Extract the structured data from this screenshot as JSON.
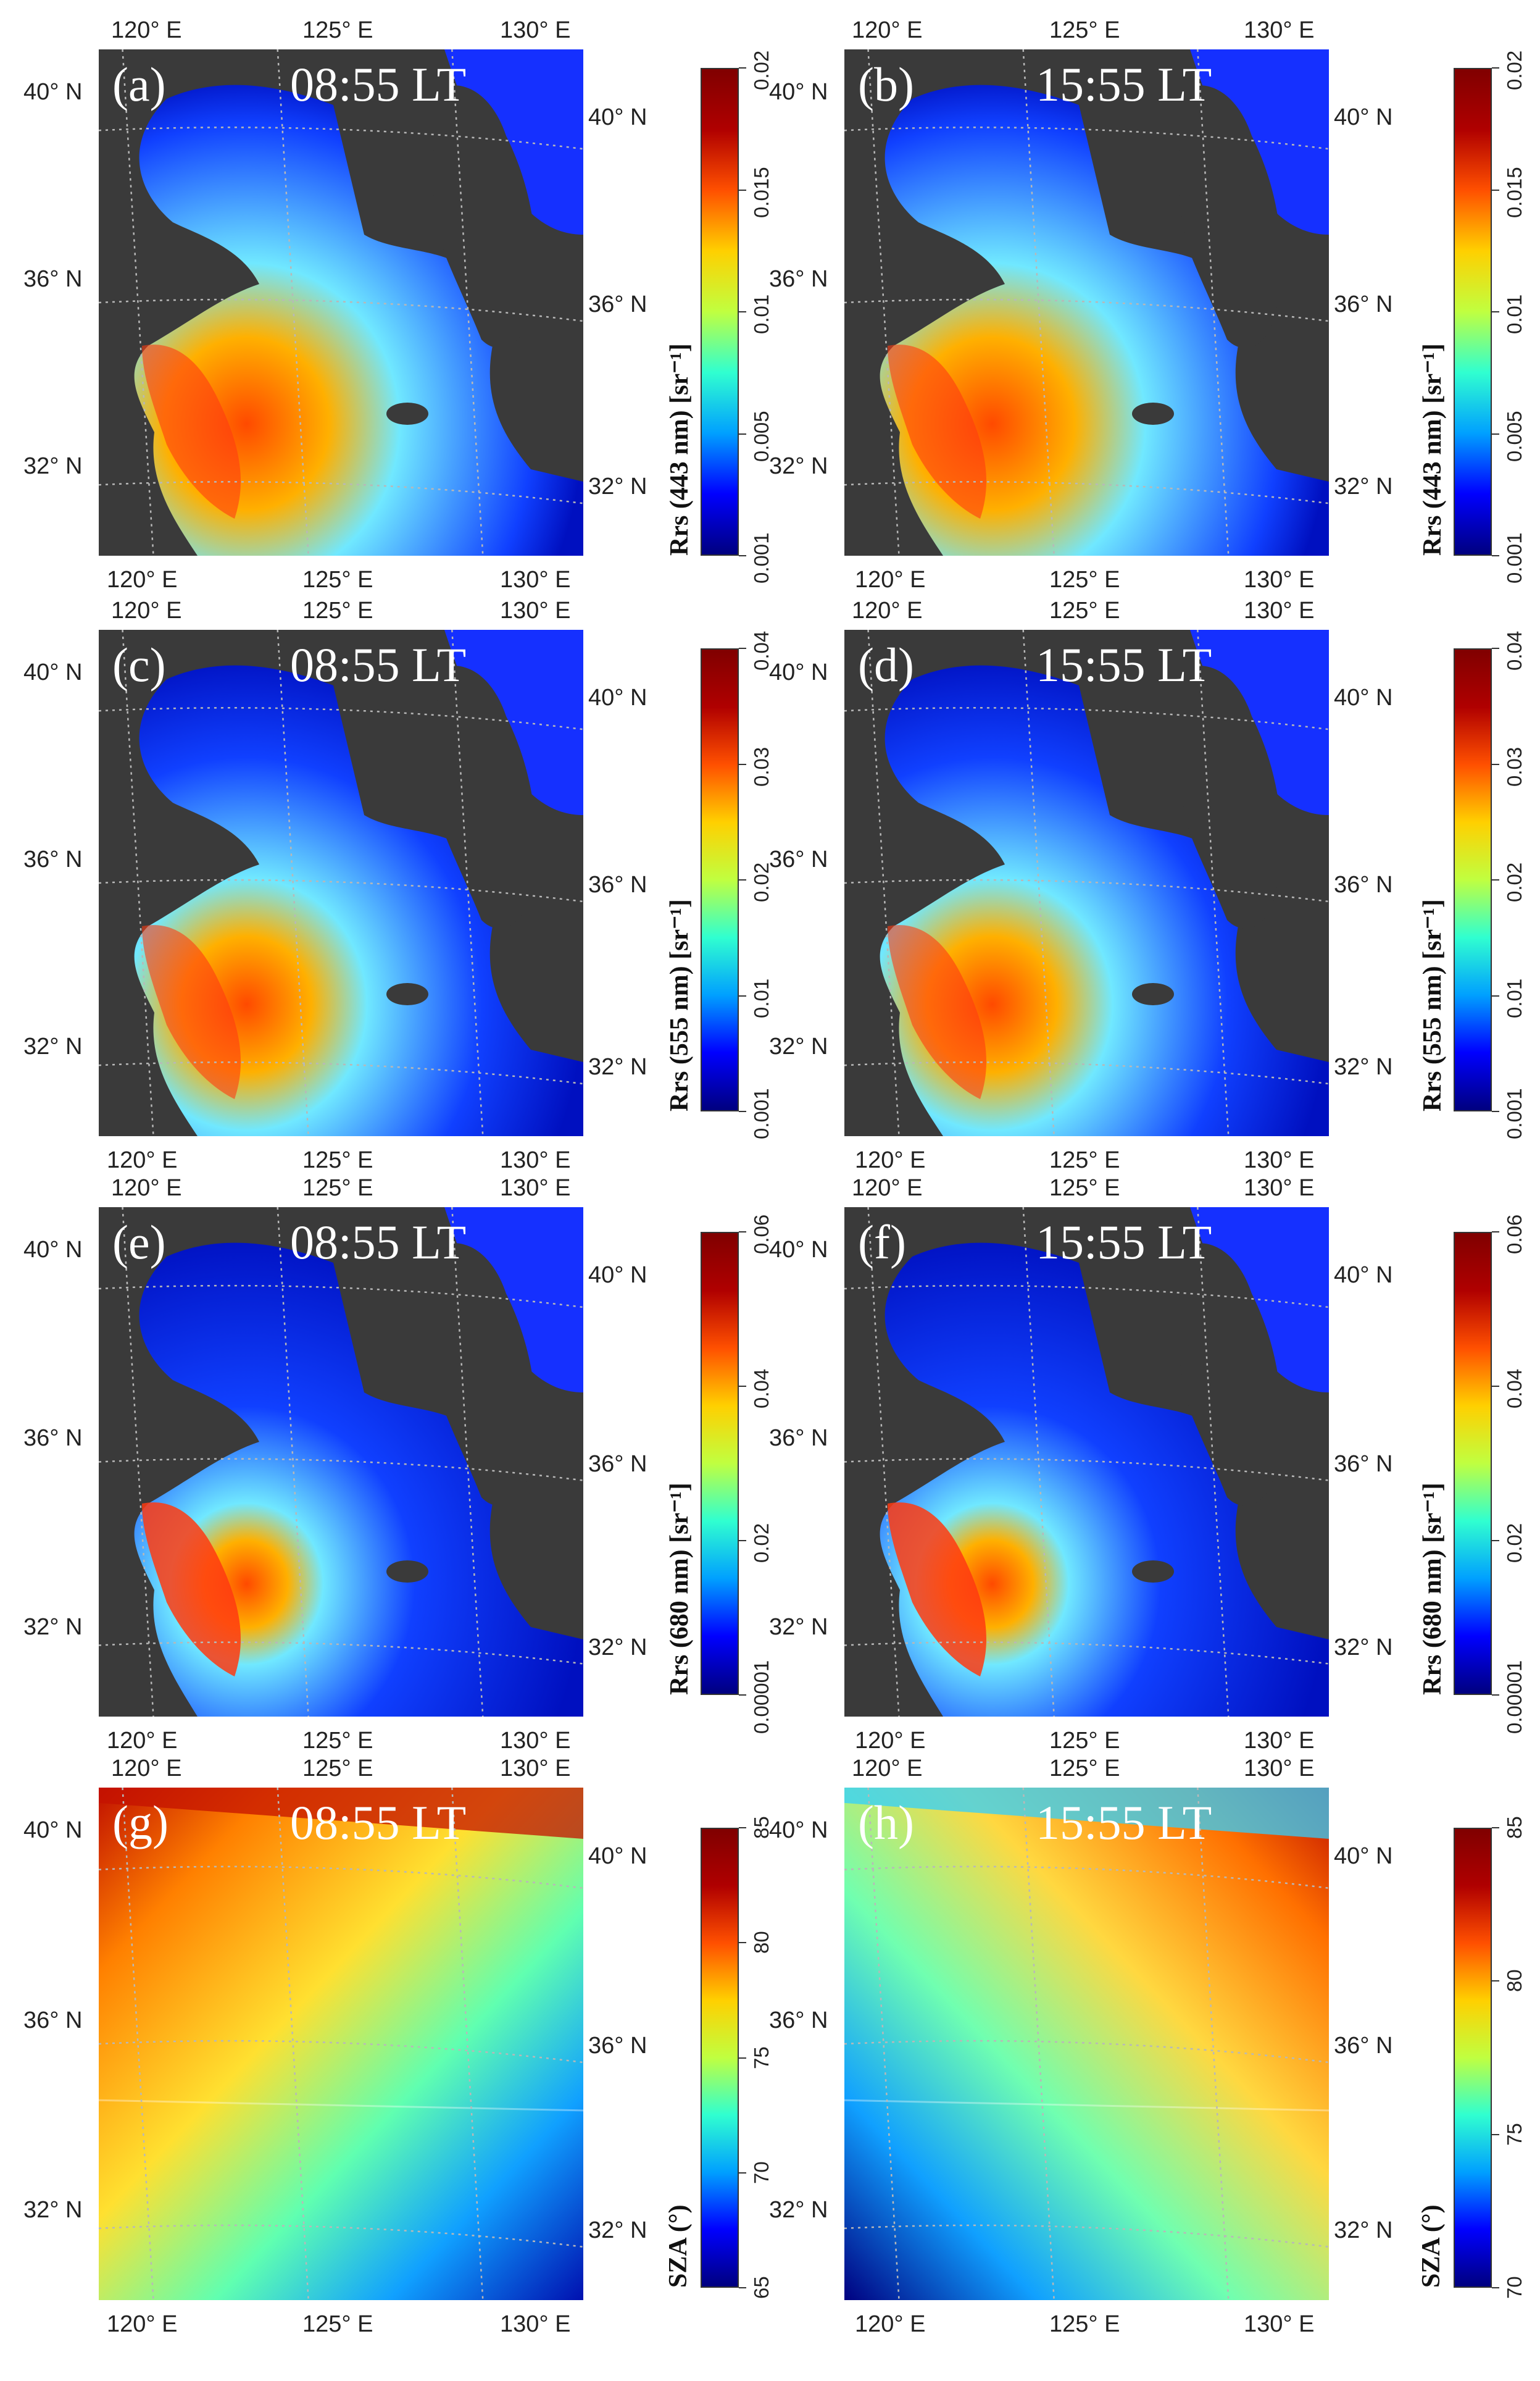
{
  "figure": {
    "panels": [
      {
        "id": "a",
        "label": "(a)",
        "time": "08:55 LT",
        "variable": "rrs443",
        "cbar_title": "Rrs (443 nm) [sr⁻¹]",
        "cbar_ticks": [
          "0.001",
          "0.005",
          "0.01",
          "0.015",
          "0.02"
        ],
        "scale": "jet"
      },
      {
        "id": "b",
        "label": "(b)",
        "time": "15:55 LT",
        "variable": "rrs443",
        "cbar_title": "Rrs (443 nm) [sr⁻¹]",
        "cbar_ticks": [
          "0.001",
          "0.005",
          "0.01",
          "0.015",
          "0.02"
        ],
        "scale": "jet"
      },
      {
        "id": "c",
        "label": "(c)",
        "time": "08:55 LT",
        "variable": "rrs555",
        "cbar_title": "Rrs (555 nm) [sr⁻¹]",
        "cbar_ticks": [
          "0.001",
          "0.01",
          "0.02",
          "0.03",
          "0.04"
        ],
        "scale": "jet"
      },
      {
        "id": "d",
        "label": "(d)",
        "time": "15:55 LT",
        "variable": "rrs555",
        "cbar_title": "Rrs (555 nm) [sr⁻¹]",
        "cbar_ticks": [
          "0.001",
          "0.01",
          "0.02",
          "0.03",
          "0.04"
        ],
        "scale": "jet"
      },
      {
        "id": "e",
        "label": "(e)",
        "time": "08:55 LT",
        "variable": "rrs680",
        "cbar_title": "Rrs (680 nm) [sr⁻¹]",
        "cbar_ticks": [
          "0.00001",
          "0.02",
          "0.04",
          "0.06"
        ],
        "scale": "jet"
      },
      {
        "id": "f",
        "label": "(f)",
        "time": "15:55 LT",
        "variable": "rrs680",
        "cbar_title": "Rrs (680 nm) [sr⁻¹]",
        "cbar_ticks": [
          "0.00001",
          "0.02",
          "0.04",
          "0.06"
        ],
        "scale": "jet"
      },
      {
        "id": "g",
        "label": "(g)",
        "time": "08:55 LT",
        "variable": "sza",
        "cbar_title": "SZA (°)",
        "cbar_ticks": [
          "65",
          "70",
          "75",
          "80",
          "85"
        ],
        "scale": "jet"
      },
      {
        "id": "h",
        "label": "(h)",
        "time": "15:55 LT",
        "variable": "sza",
        "cbar_title": "SZA (°)",
        "cbar_ticks": [
          "70",
          "75",
          "80",
          "85"
        ],
        "scale": "jet"
      }
    ],
    "lon_ticks": [
      "120° E",
      "125° E",
      "130° E"
    ],
    "lat_ticks": [
      "40° N",
      "36° N",
      "32° N"
    ],
    "colors": {
      "land": "#3a3a3a",
      "grid": "#b8b8b8",
      "colormap": [
        "#00007f",
        "#0000ff",
        "#00a0ff",
        "#30ffd0",
        "#c0ff40",
        "#ffd000",
        "#ff5000",
        "#b00000",
        "#800000"
      ]
    }
  }
}
